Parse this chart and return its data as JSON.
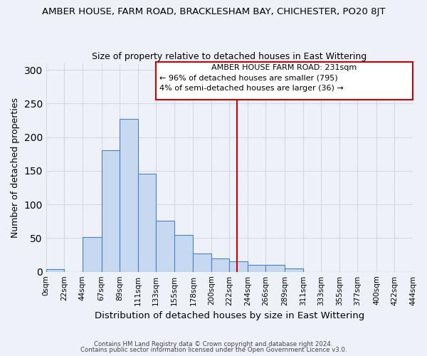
{
  "title": "AMBER HOUSE, FARM ROAD, BRACKLESHAM BAY, CHICHESTER, PO20 8JT",
  "subtitle": "Size of property relative to detached houses in East Wittering",
  "xlabel": "Distribution of detached houses by size in East Wittering",
  "ylabel": "Number of detached properties",
  "bar_edges": [
    0,
    22,
    44,
    67,
    89,
    111,
    133,
    155,
    178,
    200,
    222,
    244,
    266,
    289,
    311,
    333,
    355,
    377,
    400,
    422,
    444
  ],
  "bar_heights": [
    4,
    0,
    52,
    180,
    227,
    146,
    76,
    55,
    27,
    20,
    15,
    10,
    10,
    5,
    0,
    0,
    0,
    0,
    0,
    0
  ],
  "bar_color": "#c6d9f1",
  "bar_edge_color": "#4f81bd",
  "tick_labels": [
    "0sqm",
    "22sqm",
    "44sqm",
    "67sqm",
    "89sqm",
    "111sqm",
    "133sqm",
    "155sqm",
    "178sqm",
    "200sqm",
    "222sqm",
    "244sqm",
    "266sqm",
    "289sqm",
    "311sqm",
    "333sqm",
    "355sqm",
    "377sqm",
    "400sqm",
    "422sqm",
    "444sqm"
  ],
  "ylim": [
    0,
    310
  ],
  "yticks": [
    0,
    50,
    100,
    150,
    200,
    250,
    300
  ],
  "property_line_x": 231,
  "annotation_title": "AMBER HOUSE FARM ROAD: 231sqm",
  "annotation_line1": "← 96% of detached houses are smaller (795)",
  "annotation_line2": "4% of semi-detached houses are larger (36) →",
  "annotation_box_color": "#cc0000",
  "grid_color": "#d0d8e8",
  "background_color": "#eef2f8",
  "footnote1": "Contains HM Land Registry data © Crown copyright and database right 2024.",
  "footnote2": "Contains public sector information licensed under the Open Government Licence v3.0."
}
